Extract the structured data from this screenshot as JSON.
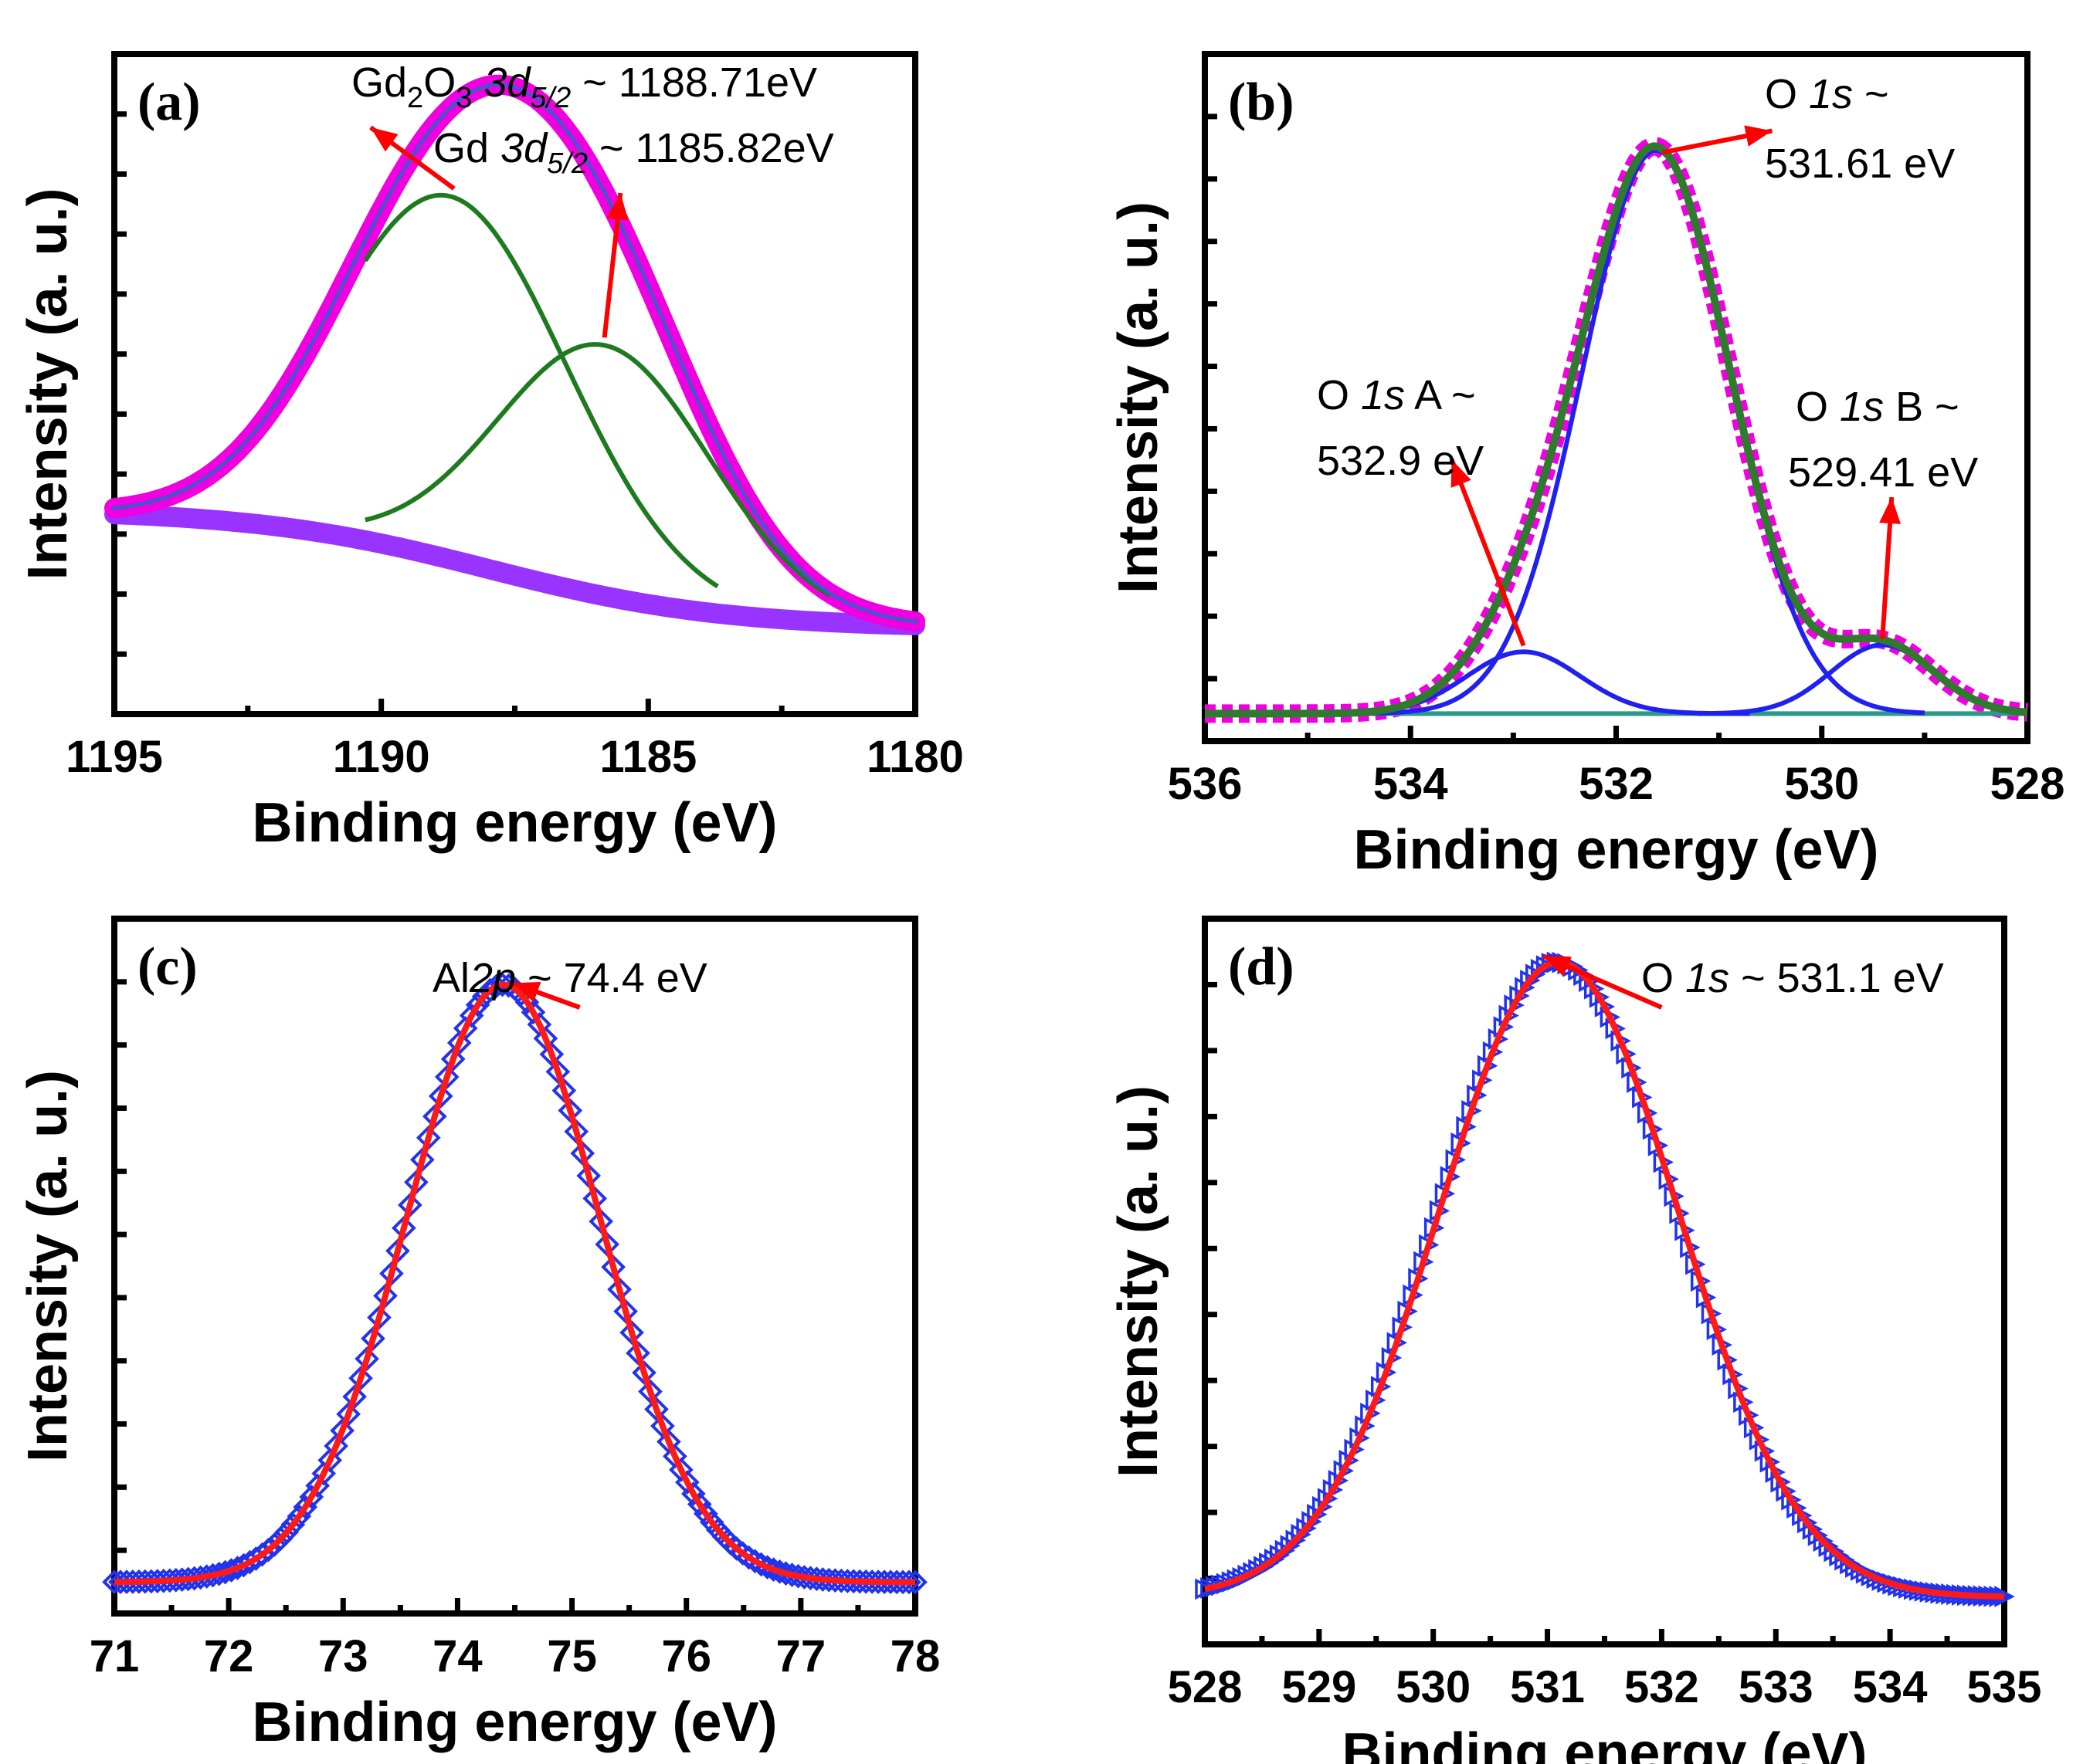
{
  "colors": {
    "data_magenta": "#f000e0",
    "background_violet": "#9933ff",
    "envelope_blue": "#3a5bd0",
    "component_green": "#1e7a1e",
    "component_blue": "#2020f0",
    "fit_green": "#2f7a2f",
    "baseline_teal": "#2a9a8a",
    "data_blue": "#2233ee",
    "fit_red": "#ff1a1a",
    "arrow_red": "#ff0000"
  },
  "chart_data": [
    {
      "id": "a",
      "panel_label": "(a)",
      "type": "line",
      "xlabel": "Binding energy (eV)",
      "ylabel": "Intensity (a. u.)",
      "xlim": [
        1195,
        1180
      ],
      "x_ticks": [
        1195,
        1190,
        1185,
        1180
      ],
      "x_tick_labels": [
        "1195",
        "1190",
        "1185",
        "1180"
      ],
      "ylim": [
        0,
        1
      ],
      "background": {
        "start": 0.31,
        "end": 0.13,
        "mid": 1188,
        "width": 2.2
      },
      "peaks": [
        {
          "name": "Gd2O3 3d5/2",
          "center": 1188.71,
          "amplitude": 0.55,
          "sigma": 2.2
        },
        {
          "name": "Gd 3d5/2",
          "center": 1185.82,
          "amplitude": 0.38,
          "sigma": 2.0
        }
      ],
      "annotations": [
        {
          "text": "Gd₂O₃ 3d₅/₂ ~ 1188.71eV",
          "main": "Gd",
          "s1": "2",
          "mid": "O",
          "s2": "3",
          "orb": " 3d",
          "s3": "5/2",
          "val": " ~ 1188.71eV"
        },
        {
          "text": "Gd 3d₅/₂ ~ 1185.82eV",
          "main": "Gd",
          "orb": " 3d",
          "s3": "5/2",
          "val": " ~ 1185.82eV"
        }
      ]
    },
    {
      "id": "b",
      "panel_label": "(b)",
      "type": "line",
      "xlabel": "Binding energy (eV)",
      "ylabel": "Intensity (a. u.)",
      "xlim": [
        536,
        528
      ],
      "x_ticks": [
        536,
        534,
        532,
        530,
        528
      ],
      "x_tick_labels": [
        "536",
        "534",
        "532",
        "530",
        "528"
      ],
      "ylim": [
        0,
        1
      ],
      "baseline": 0.04,
      "peaks": [
        {
          "name": "O 1s",
          "center": 531.61,
          "amplitude": 0.82,
          "sigma": 0.72
        },
        {
          "name": "O 1s A",
          "center": 532.9,
          "amplitude": 0.09,
          "sigma": 0.55
        },
        {
          "name": "O 1s B",
          "center": 529.41,
          "amplitude": 0.1,
          "sigma": 0.5
        }
      ],
      "annotations": [
        {
          "line1": "O 1s ~",
          "pre": "O ",
          "orb": "1s",
          "post": " ~",
          "line2": "531.61 eV"
        },
        {
          "line1": "O 1s A ~",
          "pre": "O ",
          "orb": "1s",
          "post": " A ~",
          "line2": "532.9 eV"
        },
        {
          "line1": "O 1s B ~",
          "pre": "O ",
          "orb": "1s",
          "post": " B ~",
          "line2": "529.41 eV"
        }
      ]
    },
    {
      "id": "c",
      "panel_label": "(c)",
      "type": "line",
      "xlabel": "Binding energy (eV)",
      "ylabel": "Intensity (a. u.)",
      "xlim": [
        71,
        78
      ],
      "x_ticks": [
        71,
        72,
        73,
        74,
        75,
        76,
        77,
        78
      ],
      "x_tick_labels": [
        "71",
        "72",
        "73",
        "74",
        "75",
        "76",
        "77",
        "78"
      ],
      "ylim": [
        0,
        1
      ],
      "baseline": 0.045,
      "peaks": [
        {
          "name": "Al 2p",
          "center": 74.4,
          "amplitude": 0.86,
          "sigma": 0.85
        }
      ],
      "annotations": [
        {
          "text": "Al2p ~ 74.4 eV",
          "pre": "Al",
          "orb": "2p",
          "post": " ~ 74.4 eV"
        }
      ]
    },
    {
      "id": "d",
      "panel_label": "(d)",
      "type": "line",
      "xlabel": "Binding energy (eV)",
      "ylabel": "Intensity (a. u.)",
      "xlim": [
        528,
        535
      ],
      "x_ticks": [
        528,
        529,
        530,
        531,
        532,
        533,
        534,
        535
      ],
      "x_tick_labels": [
        "528",
        "529",
        "530",
        "531",
        "532",
        "533",
        "534",
        "535"
      ],
      "ylim": [
        0,
        1
      ],
      "baseline": 0.065,
      "peaks": [
        {
          "name": "O 1s",
          "center": 531.1,
          "amplitude": 0.875,
          "sigma": 1.05
        }
      ],
      "annotations": [
        {
          "text": "O 1s ~ 531.1 eV",
          "pre": "O ",
          "orb": "1s",
          "post": " ~ 531.1 eV"
        }
      ]
    }
  ]
}
